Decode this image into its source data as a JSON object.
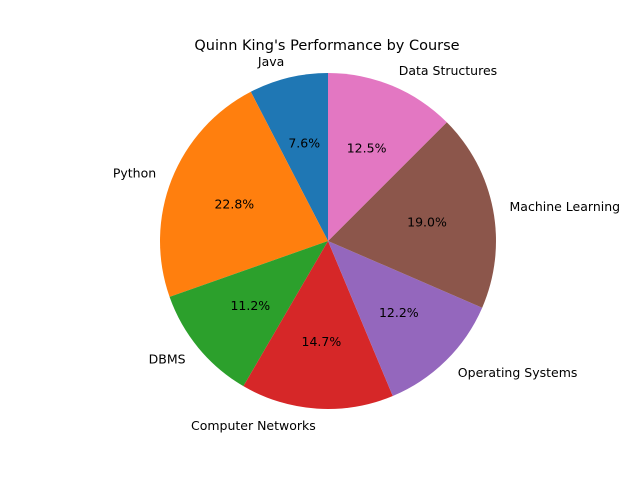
{
  "chart_data": {
    "type": "pie",
    "title": "Quinn King's Performance by Course",
    "slices": [
      {
        "label": "Java",
        "percent": 7.6,
        "pct_label": "7.6%",
        "color": "#1f77b4"
      },
      {
        "label": "Python",
        "percent": 22.8,
        "pct_label": "22.8%",
        "color": "#ff7f0e"
      },
      {
        "label": "DBMS",
        "percent": 11.2,
        "pct_label": "11.2%",
        "color": "#2ca02c"
      },
      {
        "label": "Computer Networks",
        "percent": 14.7,
        "pct_label": "14.7%",
        "color": "#d62728"
      },
      {
        "label": "Operating Systems",
        "percent": 12.2,
        "pct_label": "12.2%",
        "color": "#9467bd"
      },
      {
        "label": "Machine Learning",
        "percent": 19.0,
        "pct_label": "19.0%",
        "color": "#8c564b"
      },
      {
        "label": "Data Structures",
        "percent": 12.5,
        "pct_label": "12.5%",
        "color": "#e377c2"
      }
    ],
    "start_angle_deg": 90,
    "direction": "counterclockwise",
    "legend": "none"
  }
}
